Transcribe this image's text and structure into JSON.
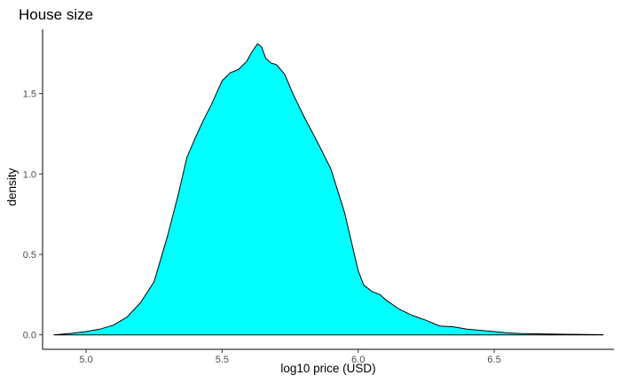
{
  "chart_data": {
    "type": "area",
    "title": "House size",
    "xlabel": "log10 price (USD)",
    "ylabel": "density",
    "xlim": [
      4.84,
      6.94
    ],
    "ylim": [
      -0.09,
      1.9
    ],
    "xticks": [
      5.0,
      5.5,
      6.0,
      6.5
    ],
    "xtick_labels": [
      "5.0",
      "5.5",
      "6.0",
      "6.5"
    ],
    "yticks": [
      0.0,
      0.5,
      1.0,
      1.5
    ],
    "ytick_labels": [
      "0.0",
      "0.5",
      "1.0",
      "1.5"
    ],
    "grid": false,
    "legend": "none",
    "fill_color": "#00ffff",
    "line_color": "#000000",
    "series": [
      {
        "x": [
          4.88,
          4.95,
          5.0,
          5.05,
          5.1,
          5.15,
          5.2,
          5.25,
          5.3,
          5.34,
          5.37,
          5.4,
          5.43,
          5.46,
          5.5,
          5.53,
          5.56,
          5.59,
          5.61,
          5.63,
          5.645,
          5.66,
          5.68,
          5.7,
          5.73,
          5.76,
          5.8,
          5.85,
          5.9,
          5.95,
          6.0,
          6.02,
          6.05,
          6.08,
          6.1,
          6.15,
          6.2,
          6.25,
          6.3,
          6.35,
          6.4,
          6.45,
          6.5,
          6.55,
          6.6,
          6.7,
          6.8,
          6.9
        ],
        "y": [
          0.0,
          0.01,
          0.02,
          0.035,
          0.06,
          0.11,
          0.2,
          0.33,
          0.62,
          0.88,
          1.1,
          1.22,
          1.33,
          1.43,
          1.58,
          1.63,
          1.65,
          1.7,
          1.76,
          1.81,
          1.79,
          1.72,
          1.69,
          1.68,
          1.62,
          1.5,
          1.36,
          1.2,
          1.03,
          0.76,
          0.4,
          0.31,
          0.27,
          0.25,
          0.22,
          0.16,
          0.12,
          0.09,
          0.055,
          0.05,
          0.035,
          0.028,
          0.02,
          0.012,
          0.008,
          0.005,
          0.003,
          0.001
        ]
      }
    ]
  }
}
